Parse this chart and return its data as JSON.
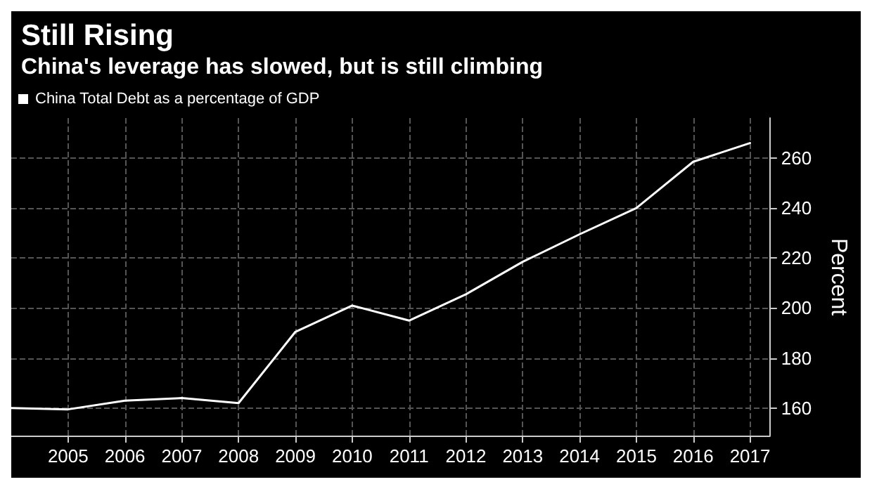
{
  "chart_data": {
    "type": "line",
    "title": "Still Rising",
    "subtitle": "China's leverage has slowed, but is still climbing",
    "ylabel": "Percent",
    "x": [
      2004,
      2005,
      2006,
      2007,
      2008,
      2009,
      2010,
      2011,
      2012,
      2013,
      2014,
      2015,
      2016,
      2017
    ],
    "series": [
      {
        "name": "China Total Debt as a percentage of GDP",
        "color": "#ffffff",
        "values": [
          160,
          159.5,
          163,
          164,
          162,
          190.5,
          201,
          195,
          205.5,
          218.5,
          229.5,
          240,
          258.5,
          266
        ]
      }
    ],
    "xlim": [
      2004,
      2017.35
    ],
    "xticks": [
      2005,
      2006,
      2007,
      2008,
      2009,
      2010,
      2011,
      2012,
      2013,
      2014,
      2015,
      2016,
      2017
    ],
    "ylim": [
      149,
      276
    ],
    "yticks": [
      160,
      180,
      200,
      220,
      240,
      260
    ],
    "grid": true,
    "legend": "top left",
    "marker": "none",
    "line_style": "solid"
  }
}
